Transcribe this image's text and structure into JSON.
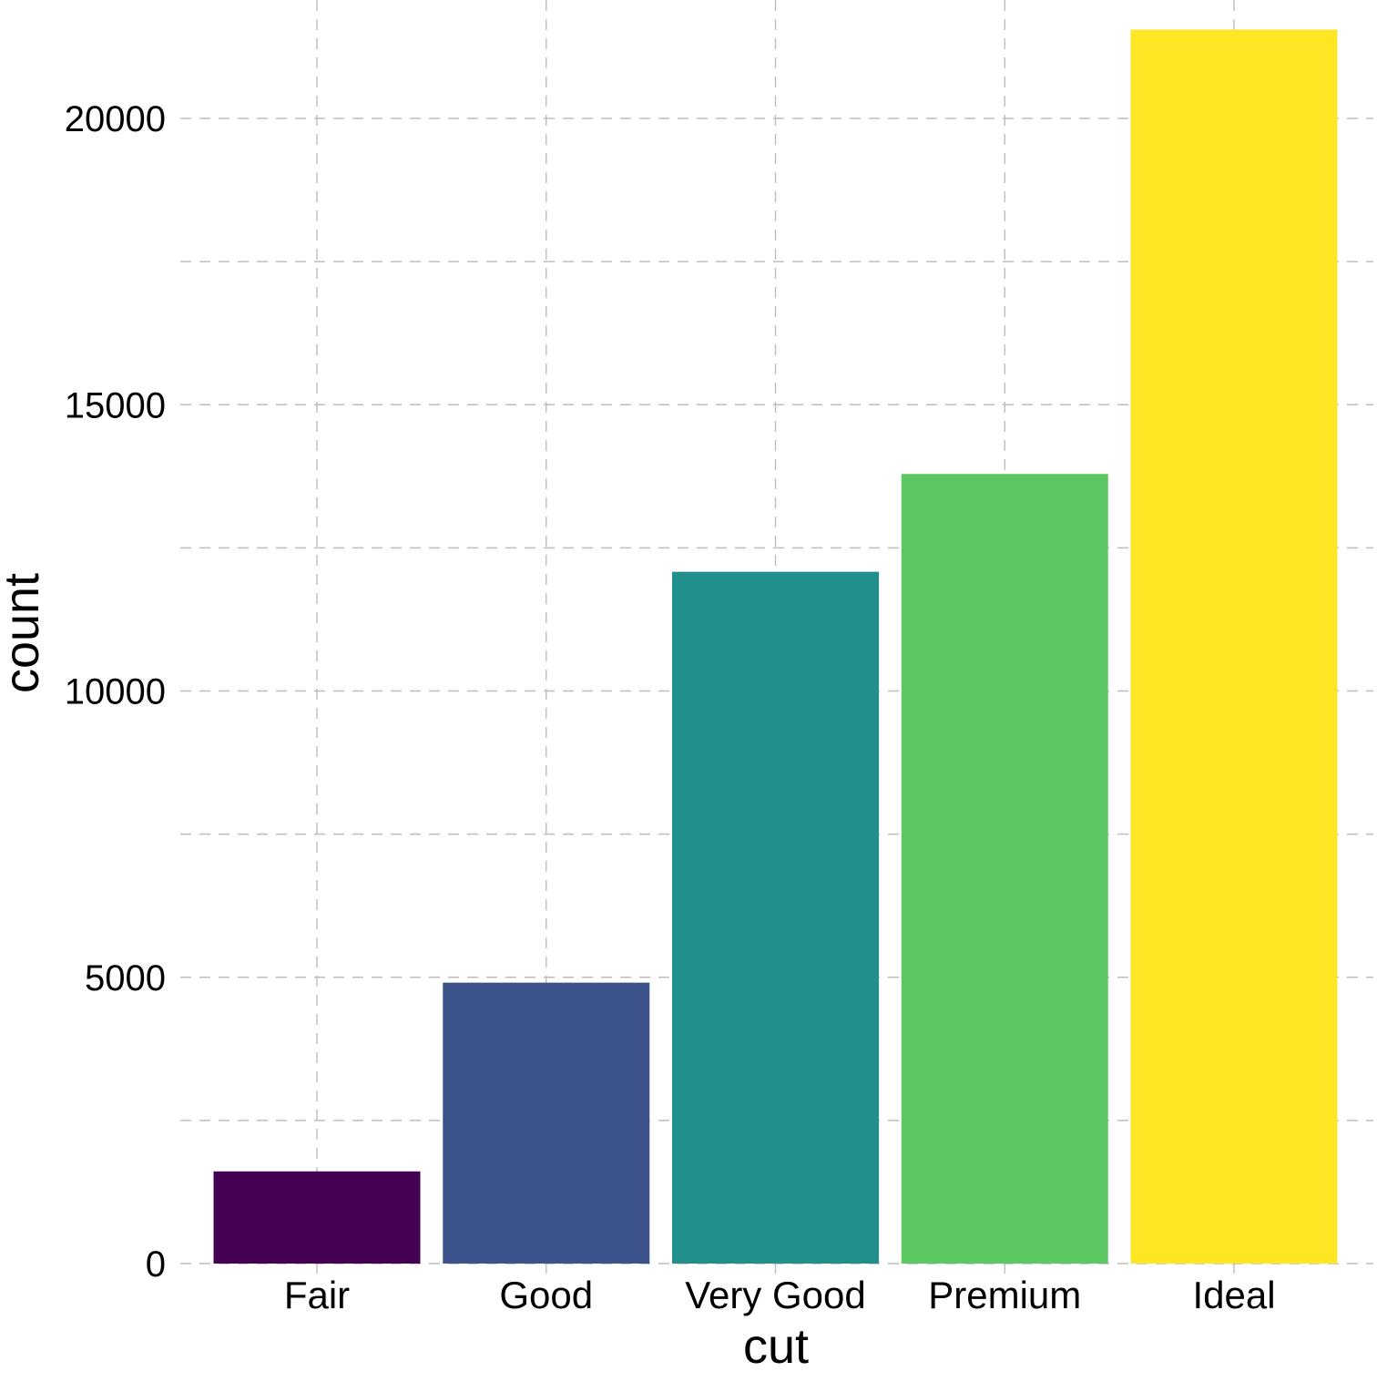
{
  "chart_data": {
    "type": "bar",
    "title": "",
    "xlabel": "cut",
    "ylabel": "count",
    "categories": [
      "Fair",
      "Good",
      "Very Good",
      "Premium",
      "Ideal"
    ],
    "values": [
      1610,
      4906,
      12082,
      13791,
      21551
    ],
    "colors": [
      "#440154",
      "#3B528B",
      "#21908C",
      "#5DC863",
      "#FDE725"
    ],
    "ylim": [
      0,
      22000
    ],
    "yticks": [
      0,
      5000,
      10000,
      15000,
      20000
    ],
    "yticks_minor": [
      2500,
      7500,
      12500,
      17500
    ],
    "grid": true,
    "grid_style": "dashed",
    "grid_color": "#bdbdbd",
    "legend": "none"
  }
}
